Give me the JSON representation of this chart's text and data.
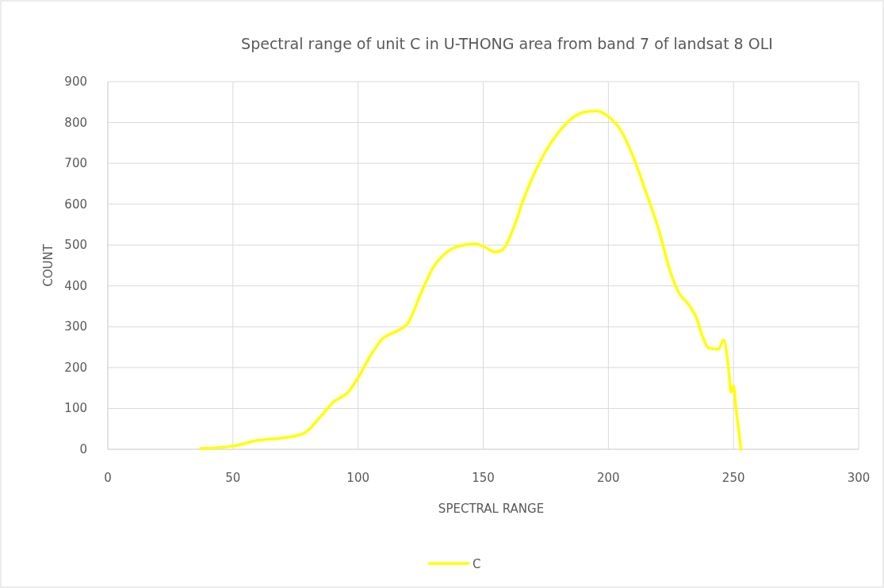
{
  "chart_data": {
    "type": "line",
    "title": "Spectral range of unit C in U-THONG area from band 7 of landsat 8 OLI",
    "xlabel": "SPECTRAL RANGE",
    "ylabel": "COUNT",
    "xlim": [
      0,
      300
    ],
    "xticks": [
      0,
      50,
      100,
      150,
      200,
      250,
      300
    ],
    "ylim": [
      0,
      900
    ],
    "yticks": [
      0,
      100,
      200,
      300,
      400,
      500,
      600,
      700,
      800,
      900
    ],
    "grid": true,
    "legend": "bottom",
    "marker": "none",
    "line_style": "solid",
    "series": [
      {
        "name": "C",
        "color": "#ffff00",
        "x": [
          37,
          50,
          60,
          70,
          78,
          85,
          90,
          96,
          100,
          105,
          110,
          115,
          120,
          125,
          130,
          135,
          140,
          147,
          150,
          155,
          158,
          162,
          166,
          170,
          175,
          180,
          185,
          190,
          195,
          200,
          205,
          210,
          215,
          220,
          225,
          228,
          232,
          235,
          238,
          240,
          244,
          246,
          248,
          249,
          250,
          251,
          253
        ],
        "values": [
          2,
          8,
          22,
          28,
          38,
          80,
          115,
          140,
          175,
          230,
          272,
          288,
          310,
          380,
          445,
          480,
          497,
          503,
          497,
          483,
          490,
          540,
          610,
          670,
          730,
          775,
          808,
          825,
          828,
          815,
          780,
          715,
          630,
          540,
          430,
          385,
          355,
          325,
          270,
          248,
          245,
          268,
          200,
          140,
          155,
          100,
          0
        ]
      }
    ]
  }
}
